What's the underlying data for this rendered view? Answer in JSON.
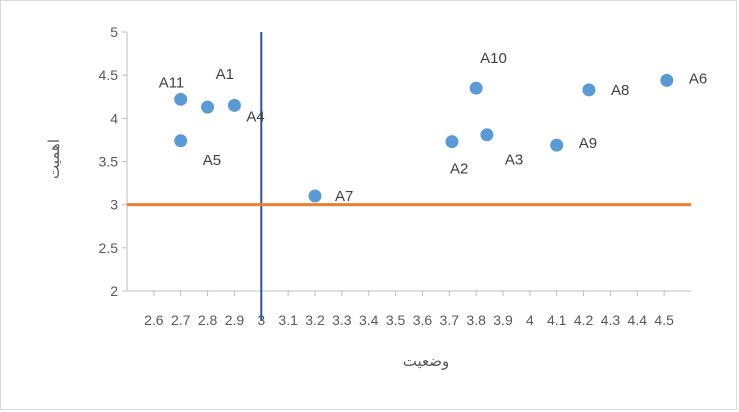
{
  "chart_data": {
    "type": "scatter",
    "title": "",
    "xlabel": "وضعیت",
    "ylabel": "اهمیت",
    "xlim": [
      2.5,
      4.6
    ],
    "ylim": [
      2,
      5
    ],
    "y_ticks": [
      "2",
      "2.5",
      "3",
      "3.5",
      "4",
      "4.5",
      "5"
    ],
    "x_ticks": [
      "2.6",
      "2.7",
      "2.8",
      "2.9",
      "3",
      "3.1",
      "3.2",
      "3.3",
      "3.4",
      "3.5",
      "3.6",
      "3.7",
      "3.8",
      "3.9",
      "4",
      "4.1",
      "4.2",
      "4.3",
      "4.4",
      "4.5"
    ],
    "grid": false,
    "legend": "none",
    "colors": {
      "points": "#5b9bd5",
      "vline": "#2f5597",
      "hline": "#ed7d31",
      "axis": "#bfbfbf"
    },
    "reference_lines": {
      "x": 3.0,
      "y": 3.0
    },
    "points": [
      {
        "label": "A11",
        "x": 2.7,
        "y": 4.22
      },
      {
        "label": "A1",
        "x": 2.8,
        "y": 4.13
      },
      {
        "label": "A4",
        "x": 2.9,
        "y": 4.15
      },
      {
        "label": "A5",
        "x": 2.7,
        "y": 3.74
      },
      {
        "label": "A7",
        "x": 3.2,
        "y": 3.1
      },
      {
        "label": "A2",
        "x": 3.71,
        "y": 3.73
      },
      {
        "label": "A10",
        "x": 3.8,
        "y": 4.35
      },
      {
        "label": "A3",
        "x": 3.84,
        "y": 3.81
      },
      {
        "label": "A9",
        "x": 4.1,
        "y": 3.69
      },
      {
        "label": "A8",
        "x": 4.22,
        "y": 4.33
      },
      {
        "label": "A6",
        "x": 4.51,
        "y": 4.44
      }
    ]
  }
}
